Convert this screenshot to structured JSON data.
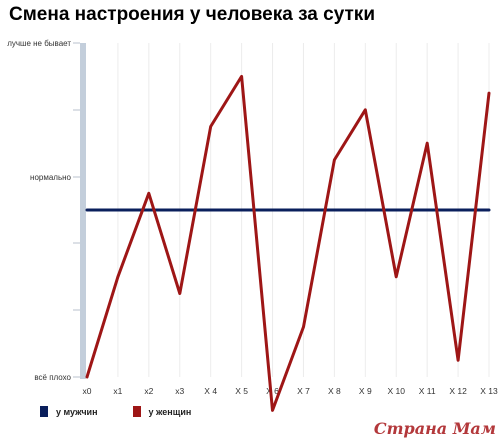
{
  "chart_data": {
    "type": "line",
    "title": "Смена настроения у человека за сутки",
    "xlabel": "",
    "ylabel": "",
    "categories": [
      "x0",
      "x1",
      "x2",
      "x3",
      "X 4",
      "X 5",
      "X 6",
      "X 7",
      "X 8",
      "X 9",
      "X 10",
      "X 11",
      "X 12",
      "X 13"
    ],
    "y_tick_labels": [
      "всё плохо",
      "нормально",
      "лучше не бывает"
    ],
    "ylim": [
      -5,
      5
    ],
    "grid": true,
    "legend_position": "bottom-left",
    "series": [
      {
        "name": "у мужчин",
        "color": "#0a1f5c",
        "values": [
          0,
          0,
          0,
          0,
          0,
          0,
          0,
          0,
          0,
          0,
          0,
          0,
          0,
          0
        ]
      },
      {
        "name": "у женщин",
        "color": "#9e1616",
        "values": [
          -5,
          -2,
          0.5,
          -2.5,
          2.5,
          4,
          -6,
          -3.5,
          1.5,
          3,
          -2,
          2,
          -4.5,
          3.5
        ]
      }
    ]
  },
  "watermark": "Страна Мам"
}
